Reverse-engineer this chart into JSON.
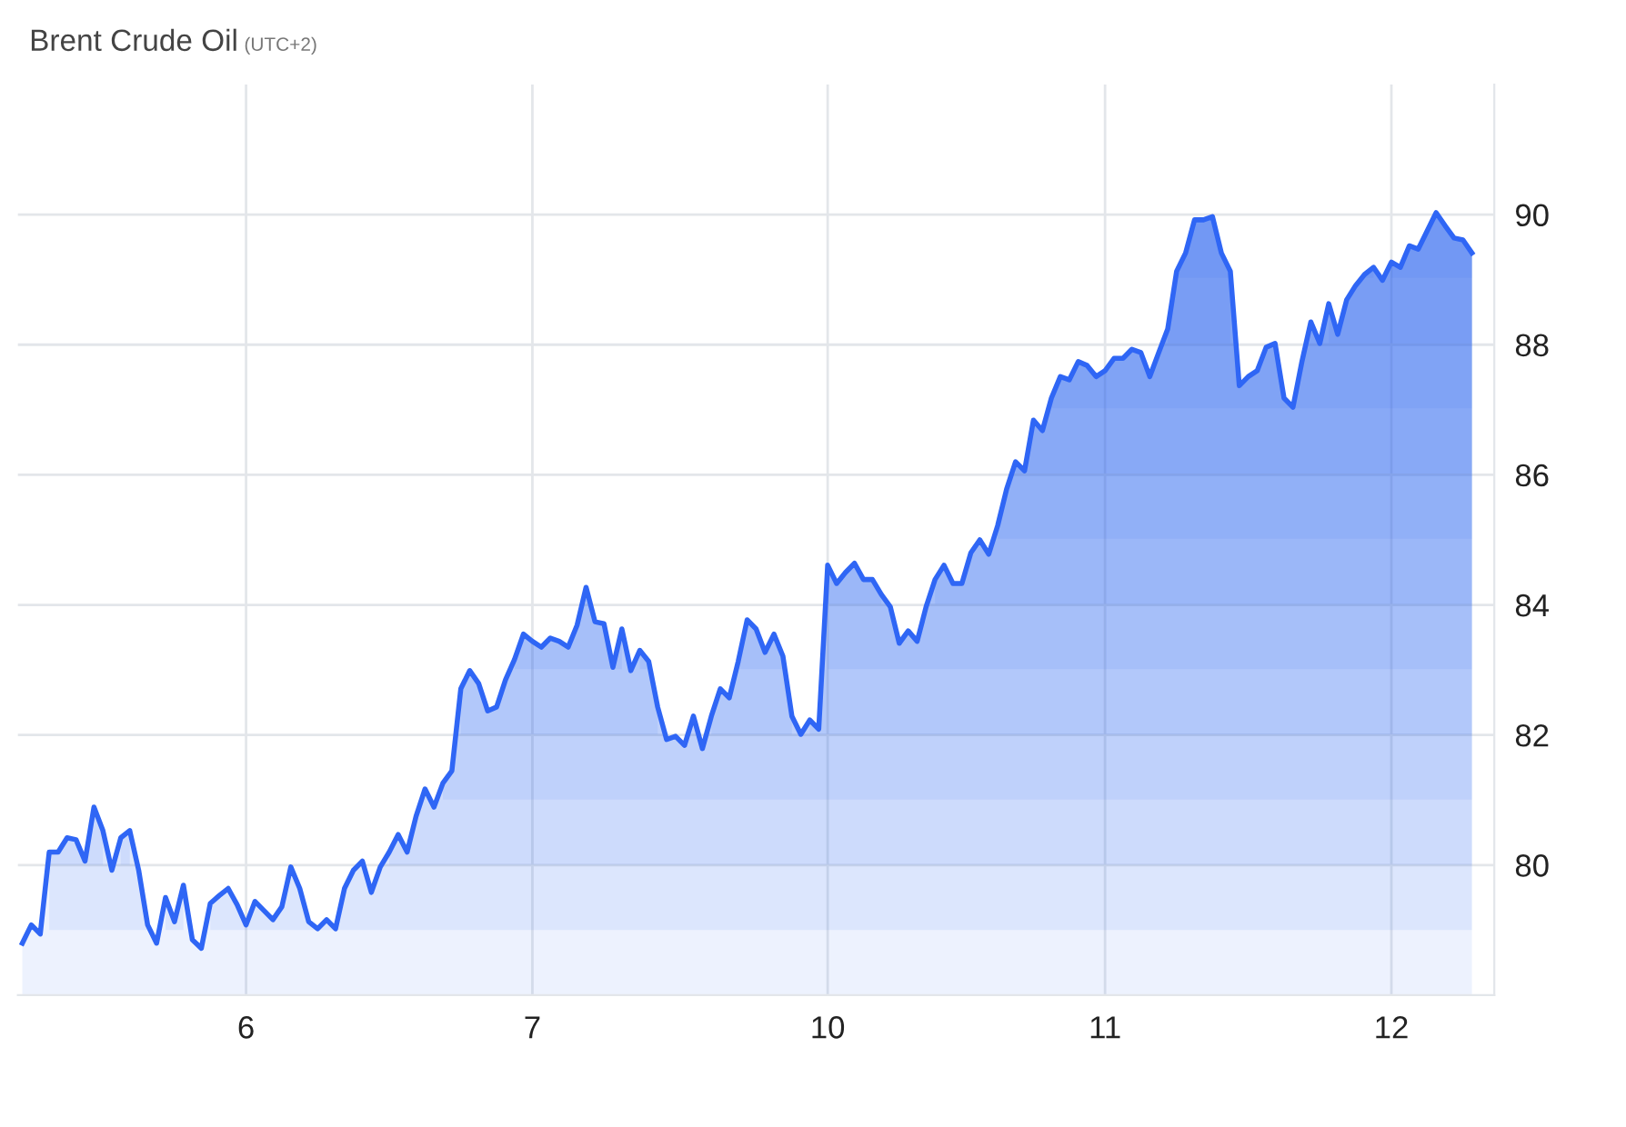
{
  "chart_data": {
    "type": "area",
    "title": "Brent Crude Oil",
    "subtitle": "(UTC+2)",
    "categories": [
      null,
      null,
      null,
      null,
      null,
      null,
      null,
      null,
      null,
      null,
      null,
      null,
      null,
      null,
      null,
      null,
      null,
      null,
      null,
      null,
      null,
      null,
      null,
      null,
      null,
      "6",
      null,
      null,
      null,
      null,
      null,
      null,
      null,
      null,
      null,
      null,
      null,
      null,
      null,
      null,
      null,
      null,
      null,
      null,
      null,
      null,
      null,
      null,
      null,
      null,
      null,
      null,
      null,
      null,
      null,
      null,
      null,
      "7",
      null,
      null,
      null,
      null,
      null,
      null,
      null,
      null,
      null,
      null,
      null,
      null,
      null,
      null,
      null,
      null,
      null,
      null,
      null,
      null,
      null,
      null,
      null,
      null,
      null,
      null,
      null,
      null,
      null,
      null,
      null,
      null,
      "10",
      null,
      null,
      null,
      null,
      null,
      null,
      null,
      null,
      null,
      null,
      null,
      null,
      null,
      null,
      null,
      null,
      null,
      null,
      null,
      null,
      null,
      null,
      null,
      null,
      null,
      null,
      null,
      null,
      null,
      null,
      "11",
      null,
      null,
      null,
      null,
      null,
      null,
      null,
      null,
      null,
      null,
      null,
      null,
      null,
      null,
      null,
      null,
      null,
      null,
      null,
      null,
      null,
      null,
      null,
      null,
      null,
      null,
      null,
      null,
      null,
      null,
      null,
      "12",
      null,
      null,
      null,
      null,
      null,
      null,
      null,
      null,
      null
    ],
    "ylim": [
      78,
      92
    ],
    "yticks": [
      80,
      82,
      84,
      86,
      88,
      90
    ],
    "grid": true,
    "series": [
      {
        "color": "#2f66f5",
        "values": [
          78.8,
          79.08,
          78.94,
          80.2,
          80.2,
          80.42,
          80.39,
          80.06,
          80.89,
          80.53,
          79.92,
          80.42,
          80.53,
          79.92,
          79.08,
          78.8,
          79.5,
          79.13,
          79.69,
          78.85,
          78.72,
          79.41,
          79.53,
          79.64,
          79.39,
          79.08,
          79.44,
          79.3,
          79.16,
          79.36,
          79.97,
          79.64,
          79.13,
          79.02,
          79.16,
          79.02,
          79.64,
          79.92,
          80.06,
          79.58,
          79.97,
          80.2,
          80.47,
          80.2,
          80.75,
          81.17,
          80.89,
          81.26,
          81.45,
          82.71,
          82.99,
          82.79,
          82.37,
          82.43,
          82.85,
          83.16,
          83.55,
          83.44,
          83.35,
          83.49,
          83.44,
          83.35,
          83.69,
          84.27,
          83.74,
          83.71,
          83.04,
          83.63,
          82.99,
          83.3,
          83.13,
          82.43,
          81.93,
          81.98,
          81.84,
          82.29,
          81.79,
          82.29,
          82.71,
          82.57,
          83.13,
          83.77,
          83.63,
          83.27,
          83.55,
          83.21,
          82.29,
          82.01,
          82.23,
          82.09,
          84.61,
          84.33,
          84.5,
          84.64,
          84.39,
          84.39,
          84.16,
          83.97,
          83.41,
          83.6,
          83.44,
          83.97,
          84.39,
          84.61,
          84.33,
          84.33,
          84.8,
          85.0,
          84.78,
          85.22,
          85.78,
          86.2,
          86.06,
          86.84,
          86.68,
          87.18,
          87.51,
          87.46,
          87.74,
          87.68,
          87.51,
          87.6,
          87.79,
          87.79,
          87.93,
          87.88,
          87.51,
          87.88,
          88.24,
          89.13,
          89.41,
          89.92,
          89.92,
          89.97,
          89.41,
          89.13,
          87.37,
          87.51,
          87.6,
          87.96,
          88.02,
          87.18,
          87.04,
          87.74,
          88.35,
          88.02,
          88.63,
          88.16,
          88.69,
          88.91,
          89.08,
          89.19,
          88.99,
          89.27,
          89.19,
          89.52,
          89.47,
          89.75,
          90.03,
          89.83,
          89.64,
          89.61,
          89.41
        ]
      }
    ]
  }
}
